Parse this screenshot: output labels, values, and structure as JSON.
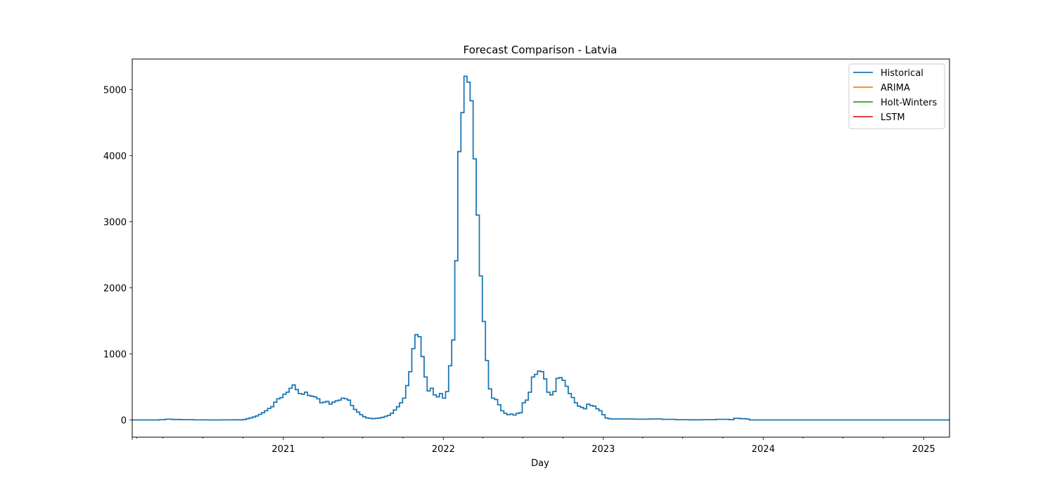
{
  "chart_data": {
    "type": "line",
    "title": "Forecast Comparison - Latvia",
    "xlabel": "Day",
    "ylabel": "",
    "x_range": [
      "2020-01-22",
      "2025-03-01"
    ],
    "ylim": [
      -260,
      5460
    ],
    "x_ticks": [
      {
        "label": "2021",
        "date": "2021-01-01"
      },
      {
        "label": "2022",
        "date": "2022-01-01"
      },
      {
        "label": "2023",
        "date": "2023-01-01"
      },
      {
        "label": "2024",
        "date": "2024-01-01"
      },
      {
        "label": "2025",
        "date": "2025-01-01"
      }
    ],
    "y_ticks": [
      0,
      1000,
      2000,
      3000,
      4000,
      5000
    ],
    "grid": false,
    "legend": "top-right",
    "series": [
      {
        "name": "Historical",
        "color": "#1f77b4",
        "points": [
          [
            "2020-01-22",
            0
          ],
          [
            "2020-03-10",
            0
          ],
          [
            "2020-03-24",
            5
          ],
          [
            "2020-04-07",
            12
          ],
          [
            "2020-04-21",
            8
          ],
          [
            "2020-05-12",
            5
          ],
          [
            "2020-06-10",
            2
          ],
          [
            "2020-07-10",
            1
          ],
          [
            "2020-08-10",
            2
          ],
          [
            "2020-09-10",
            3
          ],
          [
            "2020-10-01",
            8
          ],
          [
            "2020-10-08",
            20
          ],
          [
            "2020-10-15",
            30
          ],
          [
            "2020-10-22",
            45
          ],
          [
            "2020-10-29",
            60
          ],
          [
            "2020-11-05",
            85
          ],
          [
            "2020-11-12",
            110
          ],
          [
            "2020-11-19",
            140
          ],
          [
            "2020-11-26",
            175
          ],
          [
            "2020-12-03",
            200
          ],
          [
            "2020-12-10",
            270
          ],
          [
            "2020-12-17",
            320
          ],
          [
            "2020-12-24",
            340
          ],
          [
            "2020-12-31",
            390
          ],
          [
            "2021-01-07",
            420
          ],
          [
            "2021-01-14",
            480
          ],
          [
            "2021-01-21",
            530
          ],
          [
            "2021-01-28",
            460
          ],
          [
            "2021-02-04",
            400
          ],
          [
            "2021-02-11",
            390
          ],
          [
            "2021-02-18",
            420
          ],
          [
            "2021-02-25",
            370
          ],
          [
            "2021-03-04",
            360
          ],
          [
            "2021-03-11",
            350
          ],
          [
            "2021-03-18",
            320
          ],
          [
            "2021-03-25",
            260
          ],
          [
            "2021-04-01",
            270
          ],
          [
            "2021-04-08",
            280
          ],
          [
            "2021-04-15",
            240
          ],
          [
            "2021-04-22",
            270
          ],
          [
            "2021-04-29",
            290
          ],
          [
            "2021-05-06",
            300
          ],
          [
            "2021-05-13",
            330
          ],
          [
            "2021-05-20",
            320
          ],
          [
            "2021-05-27",
            300
          ],
          [
            "2021-06-03",
            220
          ],
          [
            "2021-06-10",
            160
          ],
          [
            "2021-06-17",
            120
          ],
          [
            "2021-06-24",
            80
          ],
          [
            "2021-07-01",
            50
          ],
          [
            "2021-07-08",
            30
          ],
          [
            "2021-07-15",
            25
          ],
          [
            "2021-07-22",
            20
          ],
          [
            "2021-07-29",
            25
          ],
          [
            "2021-08-05",
            30
          ],
          [
            "2021-08-12",
            40
          ],
          [
            "2021-08-19",
            55
          ],
          [
            "2021-08-26",
            70
          ],
          [
            "2021-09-02",
            100
          ],
          [
            "2021-09-09",
            150
          ],
          [
            "2021-09-16",
            200
          ],
          [
            "2021-09-23",
            260
          ],
          [
            "2021-09-30",
            330
          ],
          [
            "2021-10-07",
            520
          ],
          [
            "2021-10-14",
            730
          ],
          [
            "2021-10-21",
            1080
          ],
          [
            "2021-10-28",
            1290
          ],
          [
            "2021-11-04",
            1260
          ],
          [
            "2021-11-11",
            960
          ],
          [
            "2021-11-18",
            650
          ],
          [
            "2021-11-25",
            440
          ],
          [
            "2021-12-02",
            480
          ],
          [
            "2021-12-09",
            380
          ],
          [
            "2021-12-16",
            350
          ],
          [
            "2021-12-23",
            400
          ],
          [
            "2021-12-30",
            330
          ],
          [
            "2022-01-06",
            430
          ],
          [
            "2022-01-13",
            820
          ],
          [
            "2022-01-20",
            1210
          ],
          [
            "2022-01-27",
            2410
          ],
          [
            "2022-02-03",
            4060
          ],
          [
            "2022-02-10",
            4650
          ],
          [
            "2022-02-17",
            5200
          ],
          [
            "2022-02-24",
            5110
          ],
          [
            "2022-03-03",
            4830
          ],
          [
            "2022-03-10",
            3950
          ],
          [
            "2022-03-17",
            3100
          ],
          [
            "2022-03-24",
            2180
          ],
          [
            "2022-03-31",
            1490
          ],
          [
            "2022-04-07",
            900
          ],
          [
            "2022-04-14",
            470
          ],
          [
            "2022-04-21",
            330
          ],
          [
            "2022-04-28",
            310
          ],
          [
            "2022-05-05",
            230
          ],
          [
            "2022-05-12",
            140
          ],
          [
            "2022-05-19",
            100
          ],
          [
            "2022-05-26",
            80
          ],
          [
            "2022-06-02",
            90
          ],
          [
            "2022-06-09",
            75
          ],
          [
            "2022-06-16",
            100
          ],
          [
            "2022-06-23",
            110
          ],
          [
            "2022-06-30",
            260
          ],
          [
            "2022-07-07",
            300
          ],
          [
            "2022-07-14",
            420
          ],
          [
            "2022-07-21",
            650
          ],
          [
            "2022-07-28",
            690
          ],
          [
            "2022-08-04",
            740
          ],
          [
            "2022-08-11",
            730
          ],
          [
            "2022-08-18",
            620
          ],
          [
            "2022-08-25",
            420
          ],
          [
            "2022-09-01",
            380
          ],
          [
            "2022-09-08",
            430
          ],
          [
            "2022-09-15",
            630
          ],
          [
            "2022-09-22",
            640
          ],
          [
            "2022-09-29",
            600
          ],
          [
            "2022-10-06",
            510
          ],
          [
            "2022-10-13",
            400
          ],
          [
            "2022-10-20",
            340
          ],
          [
            "2022-10-27",
            260
          ],
          [
            "2022-11-03",
            210
          ],
          [
            "2022-11-10",
            190
          ],
          [
            "2022-11-17",
            170
          ],
          [
            "2022-11-24",
            240
          ],
          [
            "2022-12-01",
            220
          ],
          [
            "2022-12-08",
            210
          ],
          [
            "2022-12-15",
            170
          ],
          [
            "2022-12-22",
            140
          ],
          [
            "2022-12-29",
            80
          ],
          [
            "2023-01-05",
            30
          ],
          [
            "2023-01-12",
            20
          ],
          [
            "2023-01-19",
            15
          ],
          [
            "2023-02-15",
            15
          ],
          [
            "2023-03-15",
            12
          ],
          [
            "2023-04-15",
            15
          ],
          [
            "2023-05-15",
            10
          ],
          [
            "2023-06-15",
            5
          ],
          [
            "2023-07-15",
            3
          ],
          [
            "2023-08-15",
            5
          ],
          [
            "2023-09-15",
            10
          ],
          [
            "2023-10-15",
            5
          ],
          [
            "2023-10-26",
            25
          ],
          [
            "2023-11-09",
            20
          ],
          [
            "2023-11-23",
            15
          ],
          [
            "2023-11-30",
            0
          ],
          [
            "2024-04-01",
            0
          ],
          [
            "2025-03-01",
            0
          ]
        ]
      },
      {
        "name": "ARIMA",
        "color": "#ff7f0e",
        "points": []
      },
      {
        "name": "Holt-Winters",
        "color": "#2ca02c",
        "points": []
      },
      {
        "name": "LSTM",
        "color": "#d62728",
        "points": []
      }
    ]
  }
}
